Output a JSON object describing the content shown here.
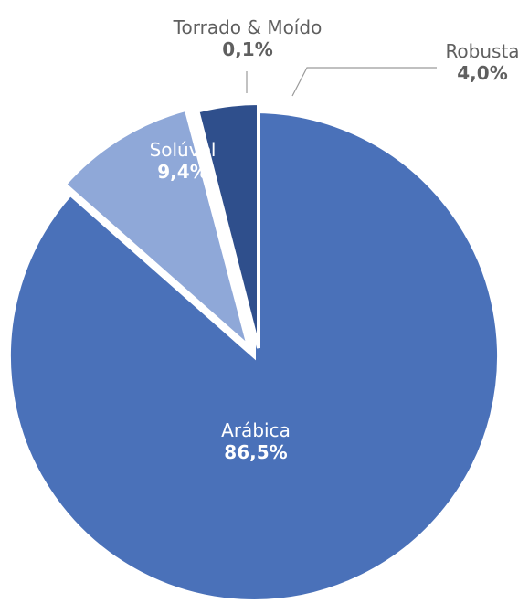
{
  "chart_data": {
    "type": "pie",
    "title": "",
    "categories": [
      "Arábica",
      "Solúvel",
      "Torrado & Moído",
      "Robusta"
    ],
    "values": [
      86.5,
      9.4,
      0.1,
      4.0
    ],
    "value_labels": [
      "86,5%",
      "9,4%",
      "0,1%",
      "4,0%"
    ],
    "colors": [
      "#4a71b9",
      "#8fa8d8",
      "#23395f",
      "#2f4f8c"
    ],
    "exploded": [
      "Solúvel",
      "Torrado & Moído",
      "Robusta"
    ],
    "start_angle_deg": 0,
    "direction": "clockwise",
    "legend": "none"
  }
}
